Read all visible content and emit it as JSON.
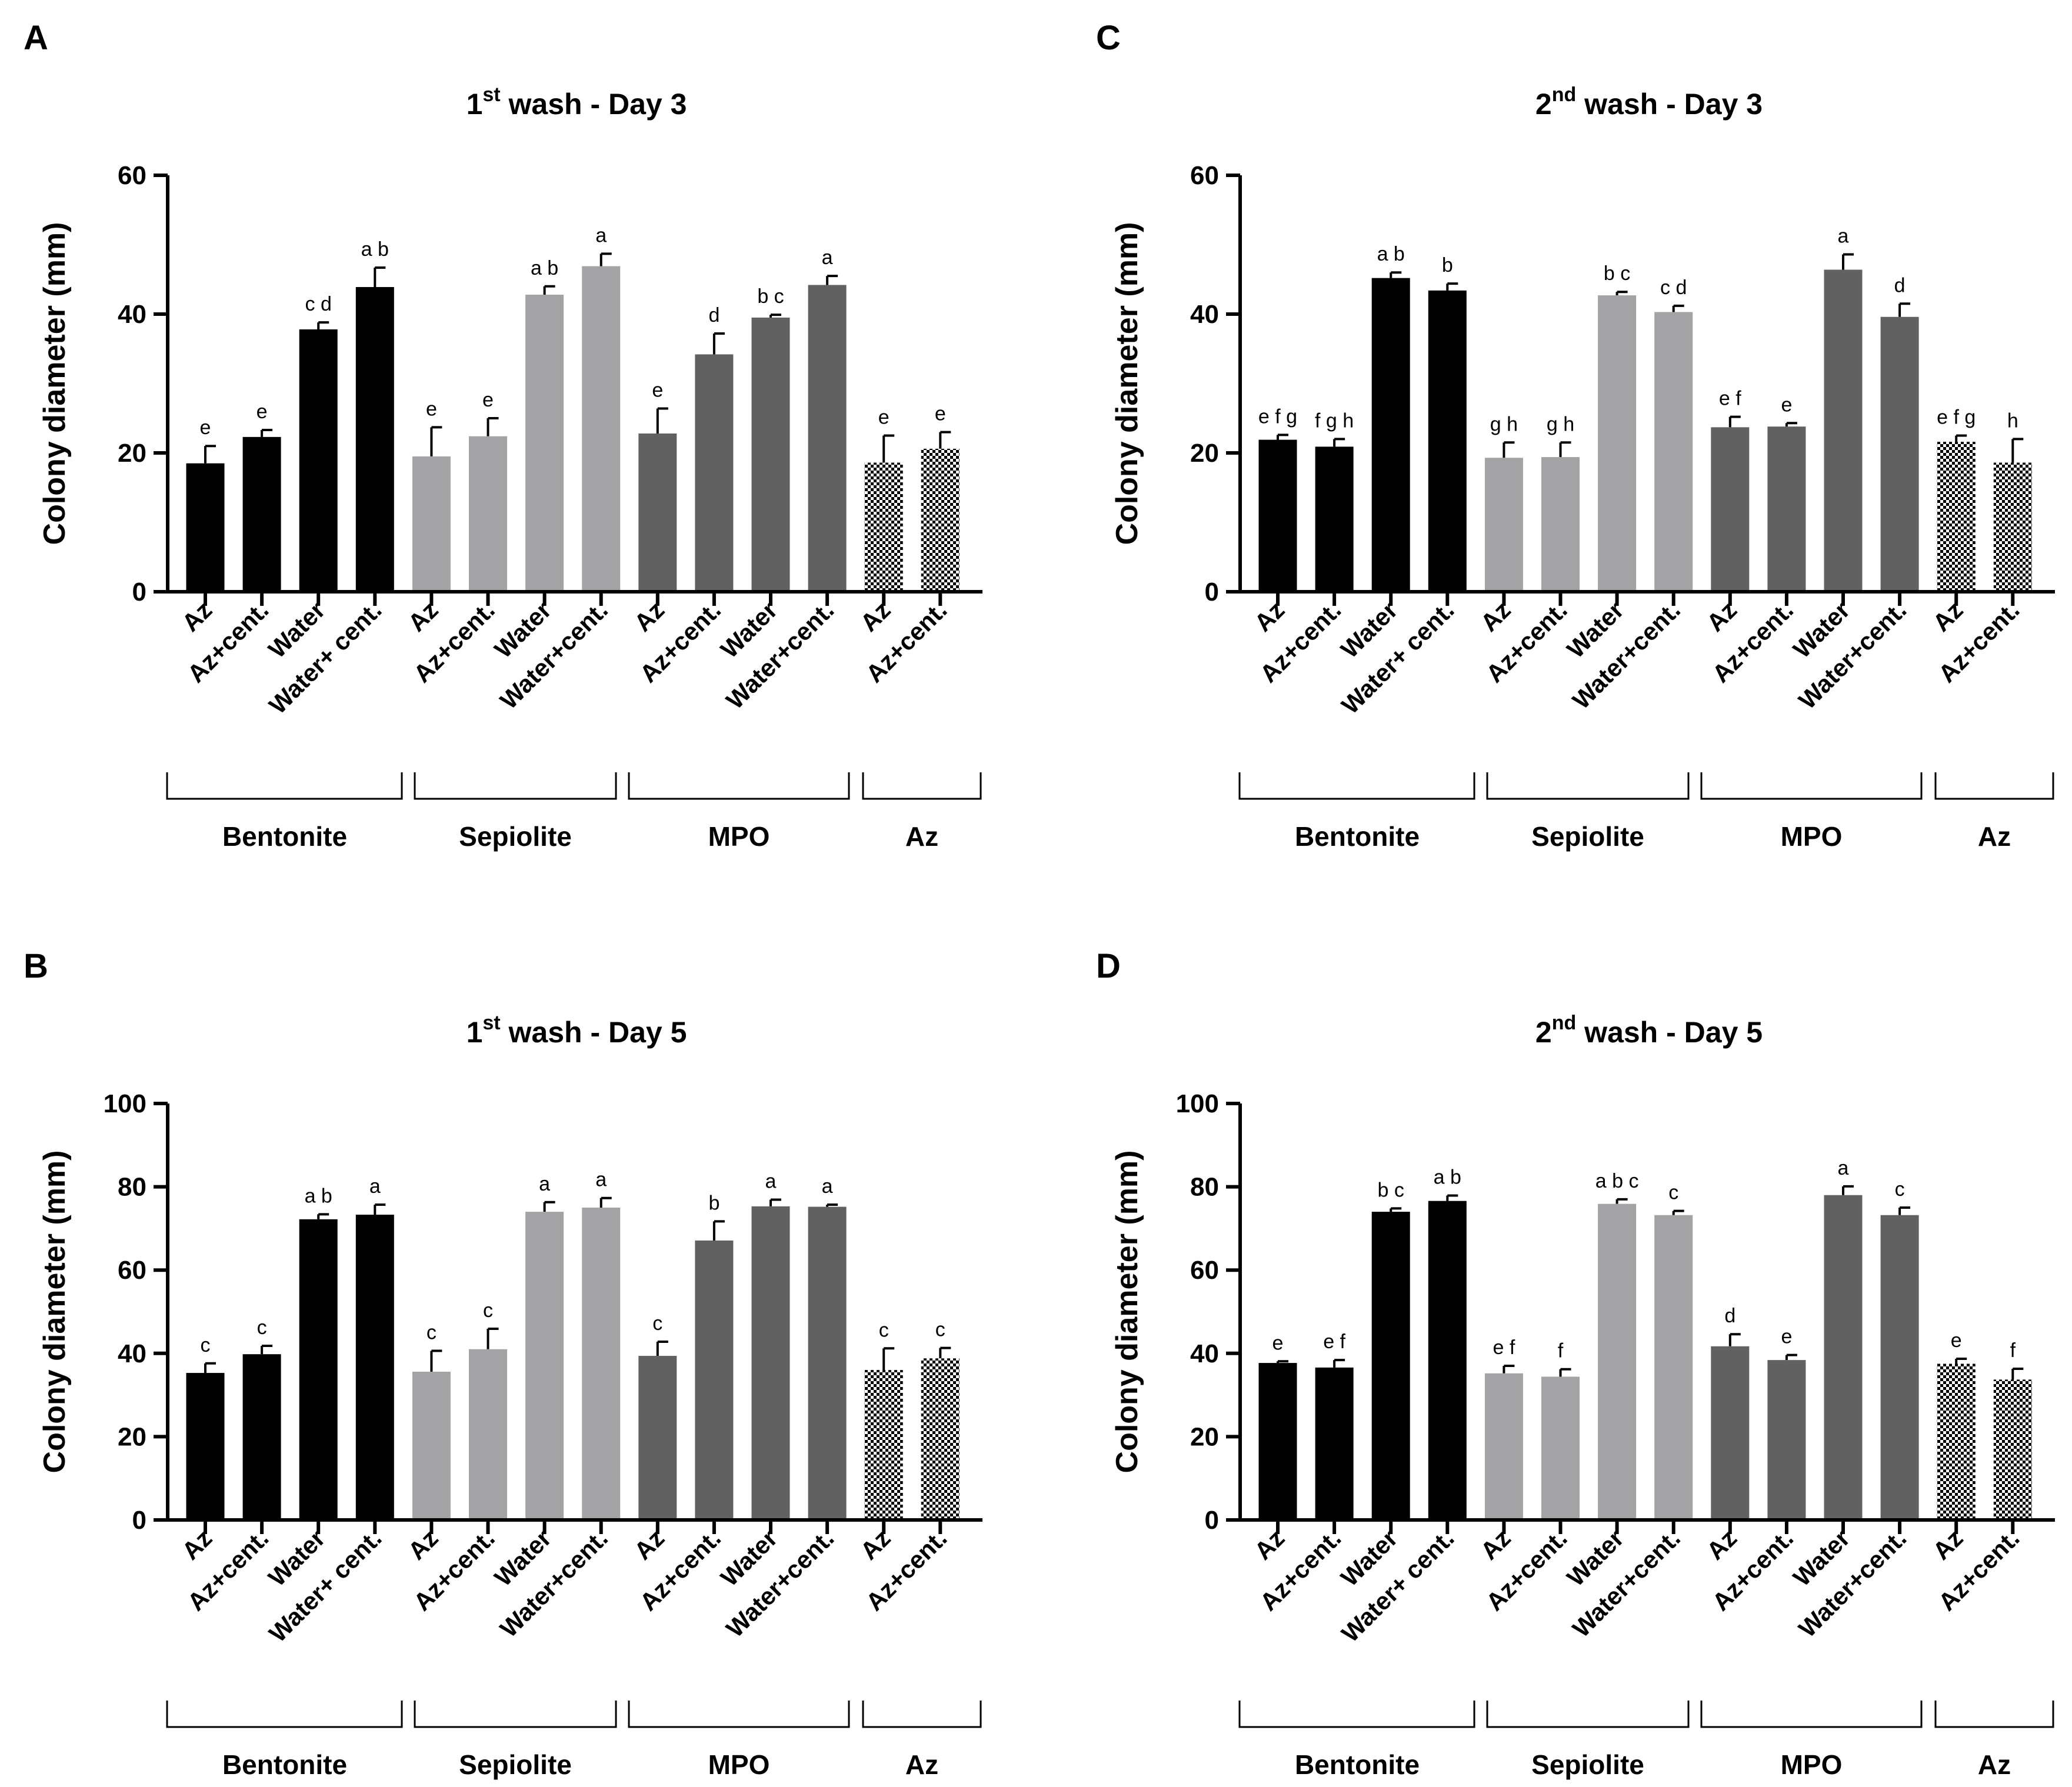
{
  "colors": {
    "bentonite": "#000000",
    "sepiolite": "#a3a3a5",
    "mpo": "#616161",
    "az": "checker",
    "axis": "#000000"
  },
  "chart_data": [
    {
      "panel": "A",
      "type": "bar",
      "title_main": "1",
      "title_sup": "st",
      "title_rest": " wash - Day 3",
      "ylabel": "Colony diameter (mm)",
      "ylim": [
        0,
        60
      ],
      "yticks": [
        "0",
        "20",
        "40",
        "60"
      ],
      "ytick_values": [
        0,
        20,
        40,
        60
      ],
      "categories": [
        "Az",
        "Az+cent.",
        "Water",
        "Water+ cent.",
        "Az",
        "Az+cent.",
        "Water",
        "Water+cent.",
        "Az",
        "Az+cent.",
        "Water",
        "Water+cent.",
        "Az",
        "Az+cent."
      ],
      "groups": [
        {
          "name": "Bentonite",
          "color": "#000000",
          "start": 0,
          "count": 4
        },
        {
          "name": "Sepiolite",
          "color": "#a3a3a5",
          "start": 4,
          "count": 4
        },
        {
          "name": "MPO",
          "color": "#616161",
          "start": 8,
          "count": 4
        },
        {
          "name": "Az",
          "color": "checker",
          "start": 12,
          "count": 2
        }
      ],
      "values": [
        18.5,
        22.3,
        37.8,
        43.9,
        19.5,
        22.4,
        42.8,
        46.9,
        22.8,
        34.2,
        39.5,
        44.2,
        18.6,
        20.6
      ],
      "errors": [
        2.5,
        1.0,
        1.0,
        2.8,
        4.2,
        2.6,
        1.2,
        1.8,
        3.6,
        3.0,
        0.4,
        1.3,
        3.9,
        2.4
      ],
      "labels": [
        "e",
        "e",
        "c d",
        "a b",
        "e",
        "e",
        "a b",
        "a",
        "e",
        "d",
        "b c",
        "a",
        "e",
        "e"
      ]
    },
    {
      "panel": "B",
      "type": "bar",
      "title_main": "1",
      "title_sup": "st",
      "title_rest": " wash - Day 5",
      "ylabel": "Colony diameter (mm)",
      "ylim": [
        0,
        100
      ],
      "yticks": [
        "0",
        "20",
        "40",
        "60",
        "80",
        "100"
      ],
      "ytick_values": [
        0,
        20,
        40,
        60,
        80,
        100
      ],
      "categories": [
        "Az",
        "Az+cent.",
        "Water",
        "Water+ cent.",
        "Az",
        "Az+cent.",
        "Water",
        "Water+cent.",
        "Az",
        "Az+cent.",
        "Water",
        "Water+cent.",
        "Az",
        "Az+cent."
      ],
      "groups": [
        {
          "name": "Bentonite",
          "color": "#000000",
          "start": 0,
          "count": 4
        },
        {
          "name": "Sepiolite",
          "color": "#a3a3a5",
          "start": 4,
          "count": 4
        },
        {
          "name": "MPO",
          "color": "#616161",
          "start": 8,
          "count": 4
        },
        {
          "name": "Az",
          "color": "checker",
          "start": 12,
          "count": 2
        }
      ],
      "values": [
        35.3,
        39.8,
        72.2,
        73.3,
        35.6,
        41.0,
        74.0,
        75.0,
        39.4,
        67.1,
        75.3,
        75.2,
        36.0,
        38.8
      ],
      "errors": [
        2.3,
        2.0,
        1.2,
        2.4,
        5.0,
        4.9,
        2.3,
        2.3,
        3.4,
        4.6,
        1.6,
        0.5,
        5.2,
        2.5
      ],
      "labels": [
        "c",
        "c",
        "a b",
        "a",
        "c",
        "c",
        "a",
        "a",
        "c",
        "b",
        "a",
        "a",
        "c",
        "c"
      ]
    },
    {
      "panel": "C",
      "type": "bar",
      "title_main": "2",
      "title_sup": "nd",
      "title_rest": " wash - Day 3",
      "ylabel": "Colony diameter (mm)",
      "ylim": [
        0,
        60
      ],
      "yticks": [
        "0",
        "20",
        "40",
        "60"
      ],
      "ytick_values": [
        0,
        20,
        40,
        60
      ],
      "categories": [
        "Az",
        "Az+cent.",
        "Water",
        "Water+ cent.",
        "Az",
        "Az+cent.",
        "Water",
        "Water+cent.",
        "Az",
        "Az+cent.",
        "Water",
        "Water+cent.",
        "Az",
        "Az+cent."
      ],
      "groups": [
        {
          "name": "Bentonite",
          "color": "#000000",
          "start": 0,
          "count": 4
        },
        {
          "name": "Sepiolite",
          "color": "#a3a3a5",
          "start": 4,
          "count": 4
        },
        {
          "name": "MPO",
          "color": "#616161",
          "start": 8,
          "count": 4
        },
        {
          "name": "Az",
          "color": "checker",
          "start": 12,
          "count": 2
        }
      ],
      "values": [
        21.9,
        20.9,
        45.2,
        43.4,
        19.3,
        19.4,
        42.7,
        40.3,
        23.7,
        23.8,
        46.4,
        39.6,
        21.6,
        18.6
      ],
      "errors": [
        0.7,
        1.1,
        0.8,
        1.0,
        2.2,
        2.1,
        0.5,
        0.9,
        1.5,
        0.5,
        2.2,
        1.9,
        0.9,
        3.4
      ],
      "labels": [
        "e f g",
        "f g h",
        "a b",
        "b",
        "g h",
        "g h",
        "b c",
        "c d",
        "e f",
        "e",
        "a",
        "d",
        "e f g",
        "h"
      ]
    },
    {
      "panel": "D",
      "type": "bar",
      "title_main": "2",
      "title_sup": "nd",
      "title_rest": " wash - Day 5",
      "ylabel": "Colony diameter (mm)",
      "ylim": [
        0,
        100
      ],
      "yticks": [
        "0",
        "20",
        "40",
        "60",
        "80",
        "100"
      ],
      "ytick_values": [
        0,
        20,
        40,
        60,
        80,
        100
      ],
      "categories": [
        "Az",
        "Az+cent.",
        "Water",
        "Water+ cent.",
        "Az",
        "Az+cent.",
        "Water",
        "Water+cent.",
        "Az",
        "Az+cent.",
        "Water",
        "Water+cent.",
        "Az",
        "Az+cent."
      ],
      "groups": [
        {
          "name": "Bentonite",
          "color": "#000000",
          "start": 0,
          "count": 4
        },
        {
          "name": "Sepiolite",
          "color": "#a3a3a5",
          "start": 4,
          "count": 4
        },
        {
          "name": "MPO",
          "color": "#616161",
          "start": 8,
          "count": 4
        },
        {
          "name": "Az",
          "color": "checker",
          "start": 12,
          "count": 2
        }
      ],
      "values": [
        37.7,
        36.6,
        74.0,
        76.6,
        35.2,
        34.4,
        75.9,
        73.2,
        41.7,
        38.4,
        78.0,
        73.2,
        37.5,
        33.7
      ],
      "errors": [
        0.4,
        1.8,
        0.8,
        1.3,
        1.8,
        1.8,
        1.1,
        1.0,
        2.9,
        1.2,
        2.1,
        1.8,
        1.2,
        2.6
      ],
      "labels": [
        "e",
        "e f",
        "b c",
        "a b",
        "e f",
        "f",
        "a b c",
        "c",
        "d",
        "e",
        "a",
        "c",
        "e",
        "f"
      ]
    }
  ]
}
